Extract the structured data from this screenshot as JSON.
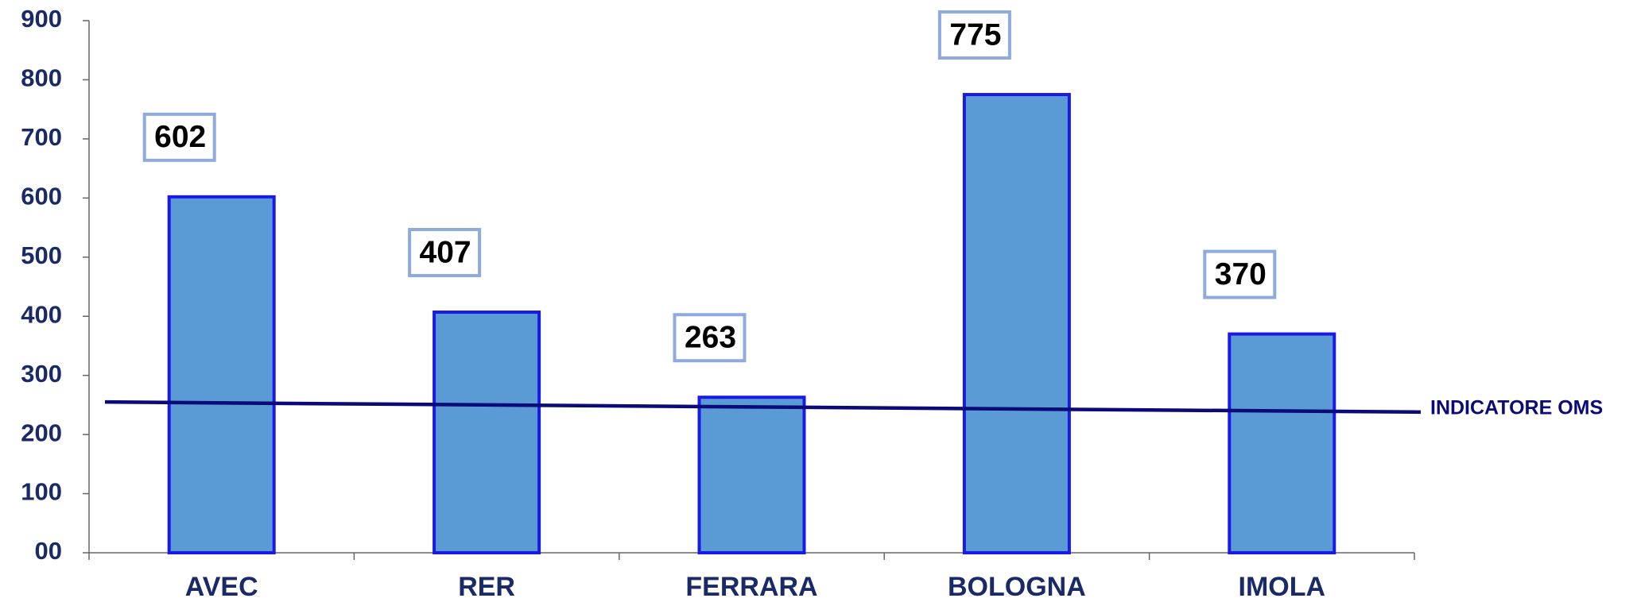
{
  "chart_data": {
    "type": "bar",
    "categories": [
      "AVEC",
      "RER",
      "FERRARA",
      "BOLOGNA",
      "IMOLA"
    ],
    "values": [
      602,
      407,
      263,
      775,
      370
    ],
    "color": "#5b9bd5",
    "edge_color": "#1a1ae6",
    "ylim": [
      0,
      900
    ],
    "yticks": [
      {
        "value": 0,
        "label": "00"
      },
      100,
      200,
      300,
      400,
      500,
      600,
      700,
      800,
      900
    ],
    "grid": false,
    "reference_line": {
      "label": "INDICATORE OMS",
      "values": [
        255,
        238
      ],
      "color": "#0a0a78"
    }
  }
}
